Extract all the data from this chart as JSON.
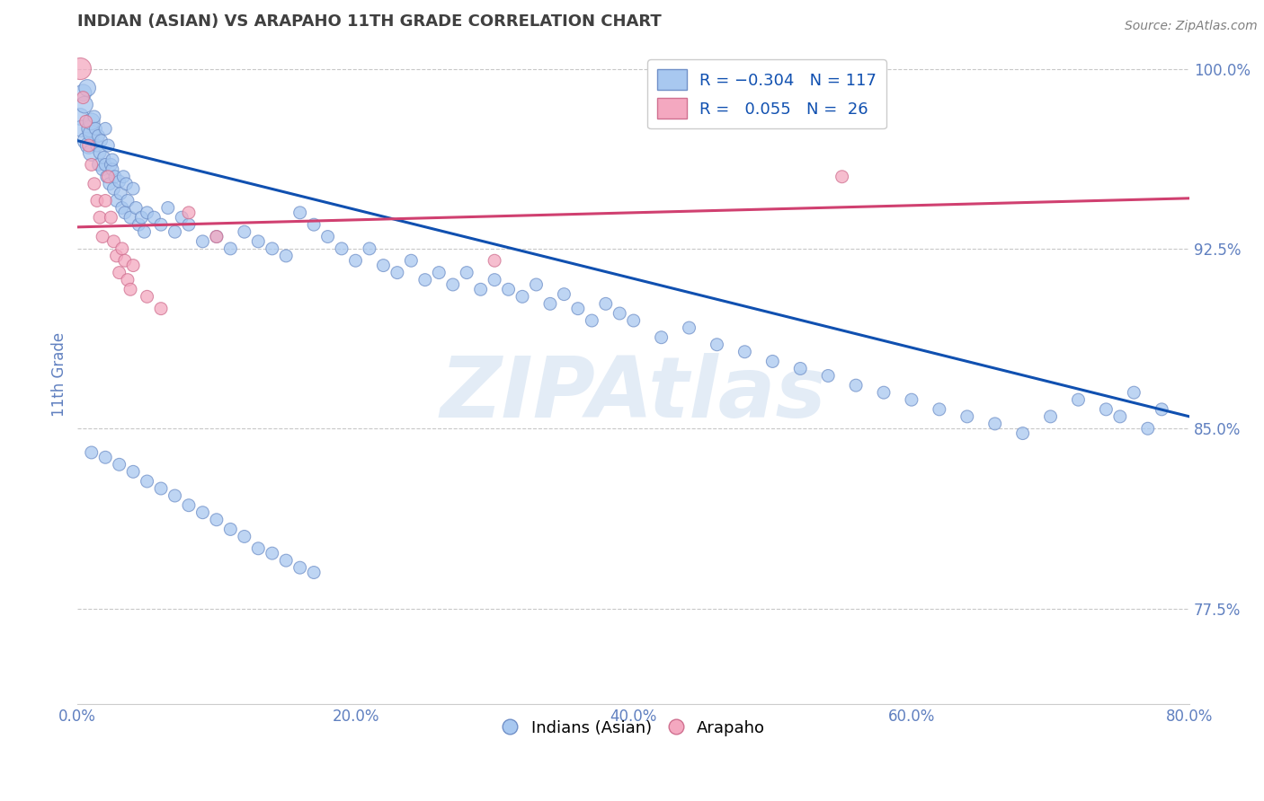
{
  "title": "INDIAN (ASIAN) VS ARAPAHO 11TH GRADE CORRELATION CHART",
  "source_text": "Source: ZipAtlas.com",
  "ylabel": "11th Grade",
  "xlim": [
    0.0,
    0.8
  ],
  "ylim": [
    0.735,
    1.01
  ],
  "xtick_labels": [
    "0.0%",
    "20.0%",
    "40.0%",
    "60.0%",
    "80.0%"
  ],
  "xtick_vals": [
    0.0,
    0.2,
    0.4,
    0.6,
    0.8
  ],
  "ytick_labels": [
    "77.5%",
    "85.0%",
    "92.5%",
    "100.0%"
  ],
  "ytick_vals": [
    0.775,
    0.85,
    0.925,
    1.0
  ],
  "legend_labels": [
    "Indians (Asian)",
    "Arapaho"
  ],
  "watermark": "ZIPAtlas",
  "blue_scatter_x": [
    0.002,
    0.003,
    0.004,
    0.005,
    0.006,
    0.007,
    0.008,
    0.009,
    0.01,
    0.01,
    0.01,
    0.012,
    0.013,
    0.014,
    0.015,
    0.015,
    0.016,
    0.017,
    0.018,
    0.019,
    0.02,
    0.02,
    0.021,
    0.022,
    0.023,
    0.024,
    0.025,
    0.025,
    0.026,
    0.027,
    0.028,
    0.03,
    0.031,
    0.032,
    0.033,
    0.034,
    0.035,
    0.036,
    0.038,
    0.04,
    0.042,
    0.044,
    0.046,
    0.048,
    0.05,
    0.055,
    0.06,
    0.065,
    0.07,
    0.075,
    0.08,
    0.09,
    0.1,
    0.11,
    0.12,
    0.13,
    0.14,
    0.15,
    0.16,
    0.17,
    0.18,
    0.19,
    0.2,
    0.21,
    0.22,
    0.23,
    0.24,
    0.25,
    0.26,
    0.27,
    0.28,
    0.29,
    0.3,
    0.31,
    0.32,
    0.33,
    0.34,
    0.35,
    0.36,
    0.37,
    0.38,
    0.39,
    0.4,
    0.42,
    0.44,
    0.46,
    0.48,
    0.5,
    0.52,
    0.54,
    0.56,
    0.58,
    0.6,
    0.62,
    0.64,
    0.66,
    0.68,
    0.7,
    0.72,
    0.74,
    0.76,
    0.78,
    0.75,
    0.77,
    0.01,
    0.02,
    0.03,
    0.04,
    0.05,
    0.06,
    0.07,
    0.08,
    0.09,
    0.1,
    0.11,
    0.12,
    0.13,
    0.14,
    0.15,
    0.16,
    0.17
  ],
  "blue_scatter_y": [
    0.98,
    0.975,
    0.99,
    0.985,
    0.97,
    0.992,
    0.968,
    0.975,
    0.973,
    0.978,
    0.965,
    0.98,
    0.975,
    0.968,
    0.972,
    0.96,
    0.965,
    0.97,
    0.958,
    0.963,
    0.975,
    0.96,
    0.955,
    0.968,
    0.952,
    0.96,
    0.958,
    0.962,
    0.95,
    0.955,
    0.945,
    0.953,
    0.948,
    0.942,
    0.955,
    0.94,
    0.952,
    0.945,
    0.938,
    0.95,
    0.942,
    0.935,
    0.938,
    0.932,
    0.94,
    0.938,
    0.935,
    0.942,
    0.932,
    0.938,
    0.935,
    0.928,
    0.93,
    0.925,
    0.932,
    0.928,
    0.925,
    0.922,
    0.94,
    0.935,
    0.93,
    0.925,
    0.92,
    0.925,
    0.918,
    0.915,
    0.92,
    0.912,
    0.915,
    0.91,
    0.915,
    0.908,
    0.912,
    0.908,
    0.905,
    0.91,
    0.902,
    0.906,
    0.9,
    0.895,
    0.902,
    0.898,
    0.895,
    0.888,
    0.892,
    0.885,
    0.882,
    0.878,
    0.875,
    0.872,
    0.868,
    0.865,
    0.862,
    0.858,
    0.855,
    0.852,
    0.848,
    0.855,
    0.862,
    0.858,
    0.865,
    0.858,
    0.855,
    0.85,
    0.84,
    0.838,
    0.835,
    0.832,
    0.828,
    0.825,
    0.822,
    0.818,
    0.815,
    0.812,
    0.808,
    0.805,
    0.8,
    0.798,
    0.795,
    0.792,
    0.79
  ],
  "pink_scatter_x": [
    0.002,
    0.004,
    0.006,
    0.008,
    0.01,
    0.012,
    0.014,
    0.016,
    0.018,
    0.02,
    0.022,
    0.024,
    0.026,
    0.028,
    0.03,
    0.032,
    0.034,
    0.036,
    0.038,
    0.04,
    0.05,
    0.06,
    0.3,
    0.55,
    0.08,
    0.1
  ],
  "pink_scatter_y": [
    1.0,
    0.988,
    0.978,
    0.968,
    0.96,
    0.952,
    0.945,
    0.938,
    0.93,
    0.945,
    0.955,
    0.938,
    0.928,
    0.922,
    0.915,
    0.925,
    0.92,
    0.912,
    0.908,
    0.918,
    0.905,
    0.9,
    0.92,
    0.955,
    0.94,
    0.93
  ],
  "blue_line": {
    "x0": 0.0,
    "y0": 0.97,
    "x1": 0.8,
    "y1": 0.855
  },
  "pink_line": {
    "x0": 0.0,
    "y0": 0.934,
    "x1": 0.8,
    "y1": 0.946
  },
  "blue_sizes": [
    180,
    180,
    180,
    180,
    180,
    180,
    180,
    180,
    180,
    180,
    180,
    100,
    100,
    100,
    100,
    100,
    100,
    100,
    100,
    100,
    100,
    100,
    100,
    100,
    100,
    100,
    100,
    100,
    100,
    100,
    100,
    100,
    100,
    100,
    100,
    100,
    100,
    100,
    100,
    100,
    100,
    100,
    100,
    100,
    100,
    100,
    100,
    100,
    100,
    100,
    100,
    100,
    100,
    100,
    100,
    100,
    100,
    100,
    100,
    100,
    100,
    100,
    100,
    100,
    100,
    100,
    100,
    100,
    100,
    100,
    100,
    100,
    100,
    100,
    100,
    100,
    100,
    100,
    100,
    100,
    100,
    100,
    100,
    100,
    100,
    100,
    100,
    100,
    100,
    100,
    100,
    100,
    100,
    100,
    100,
    100,
    100,
    100,
    100,
    100,
    100,
    100,
    100,
    100,
    100,
    100,
    100,
    100,
    100,
    100,
    100,
    100,
    100,
    100,
    100,
    100,
    100,
    100,
    100,
    100,
    100
  ],
  "pink_sizes": [
    300,
    100,
    100,
    100,
    100,
    100,
    100,
    100,
    100,
    100,
    100,
    100,
    100,
    100,
    100,
    100,
    100,
    100,
    100,
    100,
    100,
    100,
    100,
    100,
    100,
    100
  ],
  "blue_color": "#a8c8f0",
  "blue_edge_color": "#7090c8",
  "pink_color": "#f4a8c0",
  "pink_edge_color": "#d07090",
  "blue_line_color": "#1050b0",
  "pink_line_color": "#d04070",
  "grid_color": "#c8c8c8",
  "background_color": "#ffffff",
  "title_color": "#404040",
  "axis_label_color": "#6080c0",
  "tick_label_color": "#6080c0"
}
